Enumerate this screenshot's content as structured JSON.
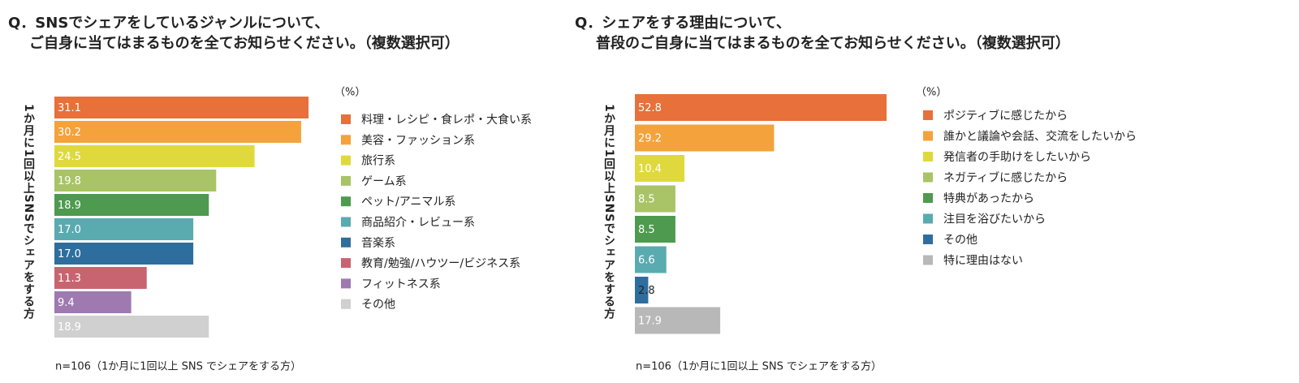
{
  "chart_data": [
    {
      "type": "bar",
      "title": [
        "Q．SNSでシェアをしているジャンルについて、",
        "ご自身に当てはまるものを全てお知らせください。（複数選択可）"
      ],
      "y_label": "1か月に1回以上SNSでシェアをする方",
      "unit": "（%）",
      "note": "n=106（1か月に1回以上 SNS でシェアをする方）",
      "categories": [
        "料理・レシピ・食レポ・大食い系",
        "美容・ファッション系",
        "旅行系",
        "ゲーム系",
        "ペット/アニマル系",
        "商品紹介・レビュー系",
        "音楽系",
        "教育/勉強/ハウツー/ビジネス系",
        "フィットネス系",
        "その他"
      ],
      "values": [
        31.1,
        30.2,
        24.5,
        19.8,
        18.9,
        17.0,
        17.0,
        11.3,
        9.4,
        18.9
      ],
      "value_labels": [
        "31.1",
        "30.2",
        "24.5",
        "19.8",
        "18.9",
        "17.0",
        "17.0",
        "11.3",
        "9.4",
        "18.9"
      ],
      "colors": [
        "#e8703a",
        "#f4a23b",
        "#dfd93e",
        "#a8c466",
        "#4e9a4f",
        "#5aabb0",
        "#2e6e9e",
        "#c86470",
        "#9e7ab0",
        "#d0d0d0"
      ]
    },
    {
      "type": "bar",
      "title": [
        "Q．シェアをする理由について、",
        "普段のご自身に当てはまるものを全てお知らせください。（複数選択可）"
      ],
      "y_label": "1か月に1回以上SNSでシェアをする方",
      "unit": "（%）",
      "note": "n=106（1か月に1回以上 SNS でシェアをする方）",
      "categories": [
        "ポジティブに感じたから",
        "誰かと議論や会話、交流をしたいから",
        "発信者の手助けをしたいから",
        "ネガティブに感じたから",
        "特典があったから",
        "注目を浴びたいから",
        "その他",
        "特に理由はない"
      ],
      "values": [
        52.8,
        29.2,
        10.4,
        8.5,
        8.5,
        6.6,
        2.8,
        17.9
      ],
      "value_labels": [
        "52.8",
        "29.2",
        "10.4",
        "8.5",
        "8.5",
        "6.6",
        "2.8",
        "17.9"
      ],
      "colors": [
        "#e8703a",
        "#f4a23b",
        "#dfd93e",
        "#a8c466",
        "#4e9a4f",
        "#5aabb0",
        "#2e6e9e",
        "#b8b8b8"
      ]
    }
  ]
}
